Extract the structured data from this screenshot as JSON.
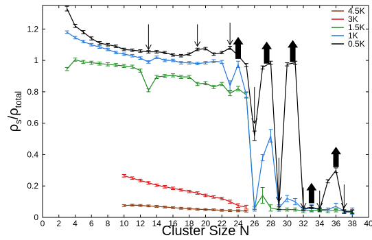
{
  "chart_data": {
    "type": "line",
    "title": "",
    "xlabel": "Cluster Size N",
    "ylabel": {
      "main": "ρ",
      "sub1": "s",
      "sep": "/ρ",
      "sub2": "total"
    },
    "xlim": [
      0,
      40
    ],
    "ylim": [
      0,
      1.35
    ],
    "xticks": [
      0,
      2,
      4,
      6,
      8,
      10,
      12,
      14,
      16,
      18,
      20,
      22,
      24,
      26,
      28,
      30,
      32,
      34,
      36,
      38,
      40
    ],
    "yticks": [
      0,
      0.2,
      0.4,
      0.6,
      0.8,
      1,
      1.2
    ],
    "ytick_labels": [
      "0",
      "0.2",
      "0.4",
      "0.6",
      "0.8",
      "1",
      "1.2"
    ],
    "grid": false,
    "legend_position": "top-right",
    "series": [
      {
        "name": "4.5K",
        "color": "#8B3A0F",
        "x": [
          10,
          11,
          12,
          13,
          14,
          15,
          16,
          17,
          18,
          19,
          20,
          21,
          22,
          23,
          24,
          25
        ],
        "y": [
          0.075,
          0.078,
          0.076,
          0.073,
          0.07,
          0.066,
          0.062,
          0.058,
          0.055,
          0.052,
          0.05,
          0.048,
          0.045,
          0.043,
          0.042,
          0.04
        ],
        "err": [
          0.006,
          0.006,
          0.006,
          0.006,
          0.006,
          0.006,
          0.006,
          0.006,
          0.006,
          0.006,
          0.006,
          0.006,
          0.006,
          0.006,
          0.006,
          0.006
        ]
      },
      {
        "name": "3K",
        "color": "#DD1111",
        "x": [
          10,
          11,
          12,
          13,
          14,
          15,
          16,
          17,
          18,
          19,
          20,
          21,
          22,
          23,
          24,
          25
        ],
        "y": [
          0.265,
          0.25,
          0.235,
          0.22,
          0.205,
          0.195,
          0.185,
          0.175,
          0.165,
          0.155,
          0.14,
          0.13,
          0.12,
          0.1,
          0.075,
          0.065
        ],
        "err": [
          0.008,
          0.008,
          0.008,
          0.008,
          0.008,
          0.008,
          0.008,
          0.008,
          0.008,
          0.008,
          0.008,
          0.008,
          0.009,
          0.01,
          0.012,
          0.012
        ]
      },
      {
        "name": "1.5K",
        "color": "#1E8C1E",
        "x": [
          3,
          4,
          5,
          6,
          7,
          8,
          9,
          10,
          11,
          12,
          13,
          14,
          15,
          16,
          17,
          18,
          19,
          20,
          21,
          22,
          23,
          24,
          25,
          26,
          27,
          28,
          29,
          30,
          31,
          32,
          33,
          34,
          35,
          36,
          37,
          38
        ],
        "y": [
          0.945,
          1.005,
          0.99,
          0.985,
          0.98,
          0.975,
          0.97,
          0.965,
          0.96,
          0.935,
          0.81,
          0.895,
          0.9,
          0.905,
          0.895,
          0.895,
          0.85,
          0.855,
          0.83,
          0.85,
          0.79,
          0.82,
          0.78,
          0.06,
          0.14,
          0.06,
          0.05,
          0.05,
          0.05,
          0.04,
          0.045,
          0.045,
          0.04,
          0.045,
          0.04,
          0.04
        ],
        "err": [
          0.01,
          0.01,
          0.01,
          0.01,
          0.01,
          0.01,
          0.01,
          0.01,
          0.01,
          0.01,
          0.01,
          0.01,
          0.01,
          0.01,
          0.01,
          0.01,
          0.01,
          0.01,
          0.01,
          0.01,
          0.015,
          0.015,
          0.015,
          0.01,
          0.05,
          0.02,
          0.01,
          0.01,
          0.01,
          0.01,
          0.01,
          0.01,
          0.01,
          0.01,
          0.01,
          0.01
        ]
      },
      {
        "name": "1K",
        "color": "#2277DD",
        "x": [
          3,
          4,
          5,
          6,
          7,
          8,
          9,
          10,
          11,
          12,
          13,
          14,
          15,
          16,
          17,
          18,
          19,
          20,
          21,
          22,
          23,
          24,
          25,
          26,
          27,
          28,
          29,
          30,
          31,
          32,
          33,
          34,
          35,
          36,
          37,
          38
        ],
        "y": [
          1.18,
          1.145,
          1.12,
          1.1,
          1.085,
          1.07,
          1.05,
          1.04,
          1.03,
          1.015,
          0.99,
          1.02,
          1.0,
          1.0,
          0.985,
          0.985,
          0.98,
          0.985,
          0.995,
          0.99,
          0.84,
          0.975,
          0.78,
          0.05,
          0.38,
          0.52,
          0.06,
          0.12,
          0.1,
          0.05,
          0.06,
          0.05,
          0.05,
          0.07,
          0.04,
          0.04
        ],
        "err": [
          0.008,
          0.008,
          0.008,
          0.008,
          0.008,
          0.008,
          0.008,
          0.008,
          0.008,
          0.008,
          0.008,
          0.008,
          0.008,
          0.008,
          0.008,
          0.008,
          0.008,
          0.008,
          0.01,
          0.01,
          0.03,
          0.02,
          0.02,
          0.01,
          0.02,
          0.04,
          0.02,
          0.02,
          0.02,
          0.01,
          0.02,
          0.01,
          0.01,
          0.02,
          0.01,
          0.02
        ]
      },
      {
        "name": "0.5K",
        "color": "#000000",
        "x": [
          3,
          4,
          5,
          6,
          7,
          8,
          9,
          10,
          11,
          12,
          13,
          14,
          15,
          16,
          17,
          18,
          19,
          20,
          21,
          22,
          23,
          24,
          25,
          26,
          27,
          28,
          29,
          30,
          31,
          32,
          33,
          34,
          35,
          36,
          37,
          38
        ],
        "y": [
          1.33,
          1.22,
          1.18,
          1.14,
          1.11,
          1.1,
          1.09,
          1.07,
          1.065,
          1.06,
          1.055,
          1.055,
          1.05,
          1.035,
          1.03,
          1.04,
          1.07,
          1.075,
          1.04,
          1.05,
          1.08,
          1.03,
          0.97,
          0.52,
          0.955,
          0.985,
          0.06,
          0.975,
          0.985,
          0.055,
          0.065,
          0.05,
          0.23,
          0.3,
          0.035,
          0.035
        ],
        "err": [
          0.015,
          0.01,
          0.01,
          0.01,
          0.01,
          0.008,
          0.008,
          0.008,
          0.008,
          0.008,
          0.008,
          0.008,
          0.008,
          0.008,
          0.008,
          0.008,
          0.008,
          0.008,
          0.008,
          0.008,
          0.01,
          0.01,
          0.01,
          0.03,
          0.01,
          0.01,
          0.01,
          0.01,
          0.01,
          0.01,
          0.01,
          0.01,
          0.01,
          0.015,
          0.01,
          0.01
        ]
      }
    ],
    "annotations": [
      {
        "type": "thin-arrow",
        "x": 13,
        "from": 1.23,
        "to": 1.07
      },
      {
        "type": "thin-arrow",
        "x": 19,
        "from": 1.23,
        "to": 1.09
      },
      {
        "type": "thin-arrow",
        "x": 23,
        "from": 1.24,
        "to": 1.1
      },
      {
        "type": "thick-arrow",
        "x": 24,
        "from": 1.01,
        "to": 1.15
      },
      {
        "type": "thin-arrow",
        "x": 26,
        "from": 0.83,
        "to": 0.6
      },
      {
        "type": "thick-arrow",
        "x": 27.5,
        "from": 0.98,
        "to": 1.12
      },
      {
        "type": "thick-arrow",
        "x": 30.7,
        "from": 0.99,
        "to": 1.13
      },
      {
        "type": "thin-arrow",
        "x": 29,
        "from": 0.38,
        "to": 0.1
      },
      {
        "type": "thin-arrow",
        "x": 32,
        "from": 0.19,
        "to": 0.06
      },
      {
        "type": "thick-arrow",
        "x": 33,
        "from": 0.09,
        "to": 0.22
      },
      {
        "type": "thin-arrow",
        "x": 34,
        "from": 0.17,
        "to": 0.06
      },
      {
        "type": "thick-arrow",
        "x": 36,
        "from": 0.32,
        "to": 0.45
      },
      {
        "type": "thin-arrow",
        "x": 37,
        "from": 0.21,
        "to": 0.06
      }
    ]
  }
}
